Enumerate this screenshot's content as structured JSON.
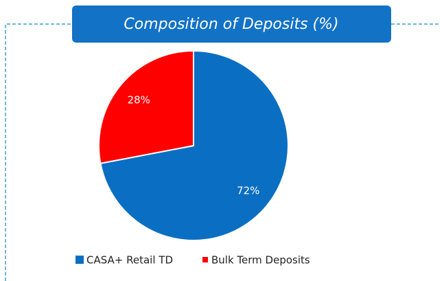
{
  "chart_data": {
    "type": "pie",
    "title": "Composition of Deposits (%)",
    "categories": [
      "CASA+ Retail TD",
      "Bulk Term Deposits"
    ],
    "values": [
      72,
      28
    ],
    "value_labels": [
      "72%",
      "28%"
    ],
    "colors": [
      "#0a6fc2",
      "#ff0000"
    ]
  }
}
